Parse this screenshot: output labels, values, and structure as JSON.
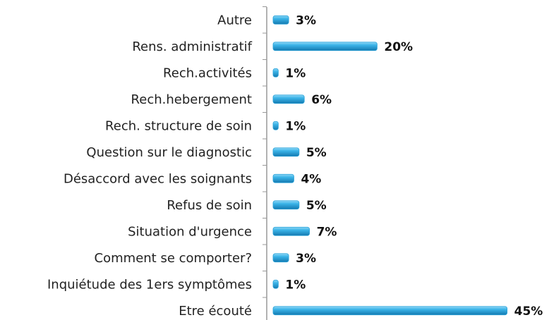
{
  "chart_data": {
    "type": "barh",
    "categories": [
      "Autre",
      "Rens. administratif",
      "Rech.activités",
      "Rech.hebergement",
      "Rech. structure de soin",
      "Question sur le diagnostic",
      "Désaccord avec les soignants",
      "Refus de soin",
      "Situation d'urgence",
      "Comment se comporter?",
      "Inquiétude des 1ers symptômes",
      "Etre écouté"
    ],
    "values": [
      3,
      20,
      1,
      6,
      1,
      5,
      4,
      5,
      7,
      3,
      1,
      45
    ],
    "value_labels": [
      "3%",
      "20%",
      "1%",
      "6%",
      "1%",
      "5%",
      "4%",
      "5%",
      "7%",
      "3%",
      "1%",
      "45%"
    ],
    "color": "#29a3d9"
  }
}
